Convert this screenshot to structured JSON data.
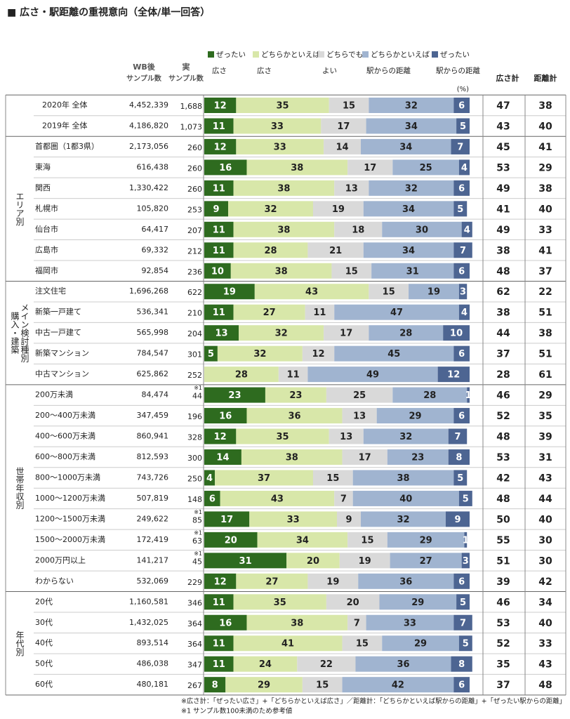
{
  "chart_data": {
    "type": "bar",
    "stacked": true,
    "title": "■ 広さ・駅距離の重視意向（全体/単一回答）",
    "header": {
      "wb": [
        "WB後",
        "サンプル数"
      ],
      "sample": [
        "実",
        "サンプル数"
      ],
      "unit": "(%)"
    },
    "groups": [
      {
        "label": null,
        "categories": [
          "2020年 全体",
          "2019年 全体"
        ]
      },
      {
        "label": [
          "エリア別"
        ],
        "categories": [
          "首都圏（1都3県）",
          "東海",
          "関西",
          "札幌市",
          "仙台市",
          "広島市",
          "福岡市"
        ]
      },
      {
        "label": [
          "購入・建築",
          "メイン検討種別"
        ],
        "categories": [
          "注文住宅",
          "新築一戸建て",
          "中古一戸建て",
          "新築マンション",
          "中古マンション"
        ]
      },
      {
        "label": [
          "世帯年収別"
        ],
        "categories": [
          "200万未満",
          "200～400万未満",
          "400～600万未満",
          "600～800万未満",
          "800～1000万未満",
          "1000～1200万未満",
          "1200～1500万未満",
          "1500～2000万未満",
          "2000万円以上",
          "わからない"
        ]
      },
      {
        "label": [
          "年代別"
        ],
        "categories": [
          "20代",
          "30代",
          "40代",
          "50代",
          "60代"
        ]
      }
    ],
    "wb_samples": [
      "4,452,339",
      "4,186,820",
      "2,173,056",
      "616,438",
      "1,330,422",
      "105,820",
      "64,417",
      "69,332",
      "92,854",
      "1,696,268",
      "536,341",
      "565,998",
      "784,547",
      "625,862",
      "84,474",
      "347,459",
      "860,941",
      "812,593",
      "743,726",
      "507,819",
      "249,622",
      "172,419",
      "141,217",
      "532,069",
      "1,160,581",
      "1,432,025",
      "893,514",
      "486,038",
      "480,181"
    ],
    "samples": [
      "1,688",
      "1,073",
      "260",
      "260",
      "260",
      "253",
      "207",
      "212",
      "236",
      "622",
      "210",
      "204",
      "301",
      "252",
      "44",
      "196",
      "328",
      "300",
      "250",
      "148",
      "85",
      "63",
      "45",
      "229",
      "346",
      "364",
      "364",
      "347",
      "267"
    ],
    "sample_notes": [
      null,
      null,
      null,
      null,
      null,
      null,
      null,
      null,
      null,
      null,
      null,
      null,
      null,
      null,
      "※1",
      null,
      null,
      null,
      null,
      null,
      "※1",
      "※1",
      "※1",
      null,
      null,
      null,
      null,
      null,
      null
    ],
    "series": [
      {
        "name": [
          "ぜったい",
          "広さ"
        ],
        "color": "#2e6b1f",
        "text_color": "#ffffff",
        "values": [
          12,
          11,
          12,
          16,
          11,
          9,
          11,
          11,
          10,
          19,
          11,
          13,
          5,
          0,
          23,
          16,
          12,
          14,
          4,
          6,
          17,
          20,
          31,
          12,
          11,
          16,
          11,
          11,
          8
        ]
      },
      {
        "name": [
          "どちらかといえば",
          "広さ"
        ],
        "color": "#d8e7a9",
        "text_color": "#222222",
        "values": [
          35,
          33,
          33,
          38,
          38,
          32,
          38,
          28,
          38,
          43,
          27,
          32,
          32,
          28,
          23,
          36,
          35,
          38,
          37,
          43,
          33,
          34,
          20,
          27,
          35,
          38,
          41,
          24,
          29
        ]
      },
      {
        "name": [
          "どちらでも",
          "よい"
        ],
        "color": "#d9d9d9",
        "text_color": "#222222",
        "values": [
          15,
          17,
          14,
          17,
          13,
          19,
          18,
          21,
          15,
          15,
          11,
          17,
          12,
          11,
          25,
          13,
          13,
          17,
          15,
          7,
          9,
          15,
          19,
          19,
          20,
          7,
          15,
          22,
          15
        ]
      },
      {
        "name": [
          "どちらかといえば",
          "駅からの距離"
        ],
        "color": "#a0b4d0",
        "text_color": "#222222",
        "values": [
          32,
          34,
          34,
          25,
          32,
          34,
          30,
          34,
          31,
          19,
          47,
          28,
          45,
          49,
          28,
          29,
          32,
          23,
          38,
          40,
          32,
          29,
          27,
          36,
          29,
          33,
          29,
          36,
          42
        ]
      },
      {
        "name": [
          "ぜったい",
          "駅からの距離"
        ],
        "color": "#4d6592",
        "text_color": "#ffffff",
        "values": [
          6,
          5,
          7,
          4,
          6,
          5,
          4,
          7,
          6,
          3,
          4,
          10,
          6,
          12,
          1,
          6,
          7,
          8,
          5,
          5,
          9,
          1,
          3,
          6,
          5,
          7,
          5,
          8,
          6
        ]
      }
    ],
    "totals": [
      {
        "name": "広さ計",
        "values": [
          47,
          43,
          45,
          53,
          49,
          41,
          49,
          38,
          48,
          62,
          38,
          44,
          37,
          28,
          46,
          52,
          48,
          53,
          42,
          48,
          50,
          55,
          51,
          39,
          46,
          53,
          52,
          35,
          37
        ]
      },
      {
        "name": "距離計",
        "values": [
          38,
          40,
          41,
          29,
          38,
          40,
          33,
          41,
          37,
          22,
          51,
          38,
          51,
          61,
          29,
          35,
          39,
          31,
          43,
          44,
          40,
          30,
          30,
          42,
          34,
          40,
          33,
          43,
          48
        ]
      }
    ],
    "ylim": [
      0,
      100
    ],
    "footnotes": [
      "※広さ計：「ぜったい広さ」+「どちらかといえば広さ」／距離計：「どちらかといえば駅からの距離」+「ぜったい駅からの距離」",
      "※1 サンプル数100未満のため参考値"
    ]
  }
}
